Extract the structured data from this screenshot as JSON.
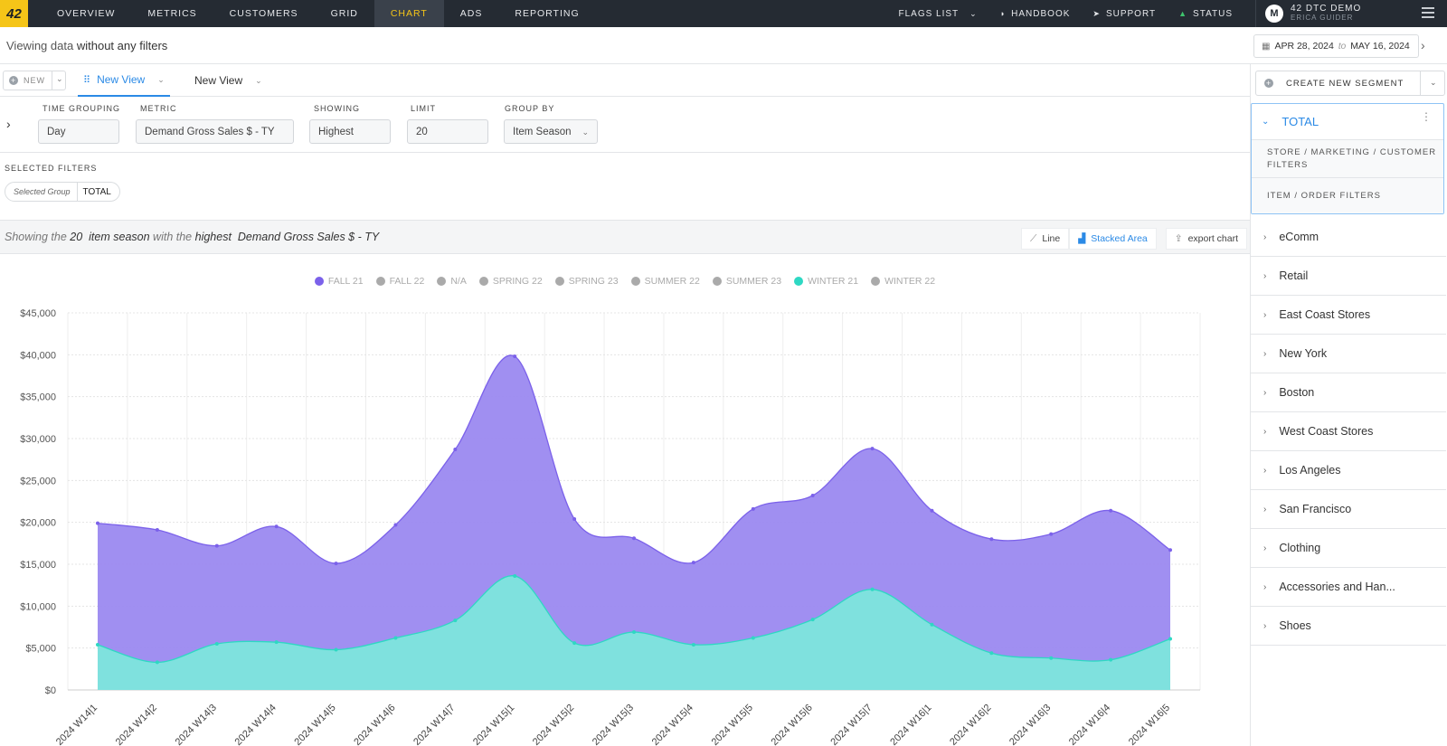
{
  "topbar": {
    "logo": "42",
    "nav": [
      "OVERVIEW",
      "METRICS",
      "CUSTOMERS",
      "GRID",
      "CHART",
      "ADS",
      "REPORTING"
    ],
    "active_nav": "CHART",
    "flags_list": "FLAGS LIST",
    "handbook": "HANDBOOK",
    "support": "SUPPORT",
    "status": "STATUS",
    "user_initial": "M",
    "user_name": "42 DTC DEMO",
    "user_sub": "ERICA GUIDER"
  },
  "filterbar": {
    "prefix": "Viewing data",
    "emphasis": "without any filters",
    "date_from": "APR 28, 2024",
    "date_to_word": "to",
    "date_to": "MAY 16, 2024"
  },
  "tabs": {
    "new_label": "NEW",
    "views": [
      "New View",
      "New View"
    ]
  },
  "controls": {
    "time_grouping": {
      "label": "TIME GROUPING",
      "value": "Day"
    },
    "metric": {
      "label": "METRIC",
      "value": "Demand Gross Sales $ - TY"
    },
    "showing": {
      "label": "SHOWING",
      "value": "Highest"
    },
    "limit": {
      "label": "LIMIT",
      "value": "20"
    },
    "group_by": {
      "label": "GROUP BY",
      "value": "Item Season"
    }
  },
  "selected_filters": {
    "title": "SELECTED FILTERS",
    "pill_key": "Selected Group",
    "pill_value": "TOTAL"
  },
  "showing_bar": {
    "p1": "Showing the",
    "limit": "20",
    "group": "item season",
    "p2": "with the",
    "direction": "highest",
    "metric": "Demand Gross Sales $ - TY",
    "btn_line": "Line",
    "btn_stacked": "Stacked Area",
    "btn_export": "export chart"
  },
  "right_panel": {
    "create_segment": "CREATE NEW SEGMENT",
    "total": "TOTAL",
    "store_filters": "STORE / MARKETING / CUSTOMER FILTERS",
    "item_filters": "ITEM / ORDER FILTERS",
    "segments": [
      "eComm",
      "Retail",
      "East Coast Stores",
      "New York",
      "Boston",
      "West Coast Stores",
      "Los Angeles",
      "San Francisco",
      "Clothing",
      "Accessories and Han...",
      "Shoes"
    ]
  },
  "chart_data": {
    "type": "area",
    "stacked": true,
    "legend_position": "top-center",
    "grid": true,
    "legend": [
      {
        "name": "FALL 21",
        "color": "#7b61ea"
      },
      {
        "name": "FALL 22",
        "color": "#aaaaaa"
      },
      {
        "name": "N/A",
        "color": "#aaaaaa"
      },
      {
        "name": "SPRING 22",
        "color": "#aaaaaa"
      },
      {
        "name": "SPRING 23",
        "color": "#aaaaaa"
      },
      {
        "name": "SUMMER 22",
        "color": "#aaaaaa"
      },
      {
        "name": "SUMMER 23",
        "color": "#aaaaaa"
      },
      {
        "name": "WINTER 21",
        "color": "#2ed8c3"
      },
      {
        "name": "WINTER 22",
        "color": "#aaaaaa"
      }
    ],
    "categories": [
      "2024 W14|1",
      "2024 W14|2",
      "2024 W14|3",
      "2024 W14|4",
      "2024 W14|5",
      "2024 W14|6",
      "2024 W14|7",
      "2024 W15|1",
      "2024 W15|2",
      "2024 W15|3",
      "2024 W15|4",
      "2024 W15|5",
      "2024 W15|6",
      "2024 W15|7",
      "2024 W16|1",
      "2024 W16|2",
      "2024 W16|3",
      "2024 W16|4",
      "2024 W16|5"
    ],
    "series": [
      {
        "name": "WINTER 21",
        "color": "#7de6dc",
        "stroke": "#2ed8c3",
        "values": [
          5400,
          3300,
          5500,
          5700,
          4800,
          6200,
          8300,
          13600,
          5600,
          6900,
          5400,
          6200,
          8400,
          12000,
          7800,
          4400,
          3800,
          3600,
          6100
        ]
      },
      {
        "name": "FALL 21",
        "color": "#9b89f0",
        "stroke": "#7b61ea",
        "values": [
          14500,
          15800,
          11700,
          13800,
          10300,
          13500,
          20400,
          26200,
          14800,
          11200,
          9800,
          15400,
          14800,
          16800,
          13600,
          13600,
          14800,
          17800,
          10600
        ]
      }
    ],
    "y_ticks": [
      "$0",
      "$5,000",
      "$10,000",
      "$15,000",
      "$20,000",
      "$25,000",
      "$30,000",
      "$35,000",
      "$40,000",
      "$45,000"
    ],
    "ylim": [
      0,
      45000
    ]
  }
}
